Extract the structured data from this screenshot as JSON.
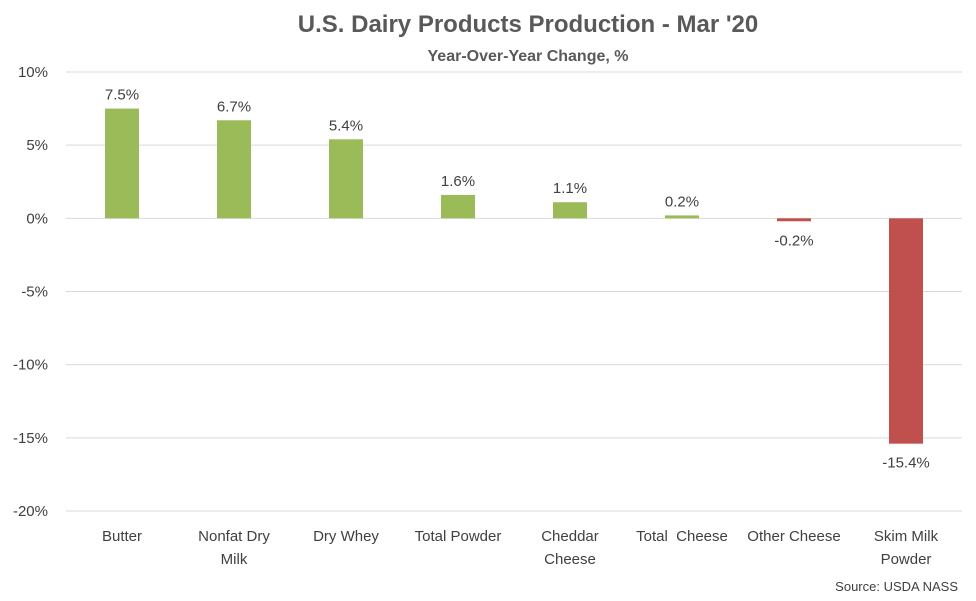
{
  "chart_data": {
    "type": "bar",
    "title": "U.S. Dairy Products Production - Mar '20",
    "subtitle": "Year-Over-Year Change, %",
    "source": "Source: USDA NASS",
    "categories": [
      [
        "Butter"
      ],
      [
        "Nonfat Dry",
        "Milk"
      ],
      [
        "Dry Whey"
      ],
      [
        "Total Powder"
      ],
      [
        "Cheddar",
        "Cheese"
      ],
      [
        "Total  Cheese"
      ],
      [
        "Other Cheese"
      ],
      [
        "Skim Milk",
        "Powder"
      ]
    ],
    "values": [
      7.5,
      6.7,
      5.4,
      1.6,
      1.1,
      0.2,
      -0.2,
      -15.4
    ],
    "data_labels": [
      "7.5%",
      "6.7%",
      "5.4%",
      "1.6%",
      "1.1%",
      "0.2%",
      "-0.2%",
      "-15.4%"
    ],
    "ylim": [
      -20,
      10
    ],
    "yticks": [
      10,
      5,
      0,
      -5,
      -10,
      -15,
      -20
    ],
    "ytick_labels": [
      "10%",
      "5%",
      "0%",
      "-5%",
      "-10%",
      "-15%",
      "-20%"
    ],
    "grid": true,
    "legend": "none",
    "colors": {
      "positive": "#9bbb59",
      "negative": "#c0504d"
    }
  }
}
